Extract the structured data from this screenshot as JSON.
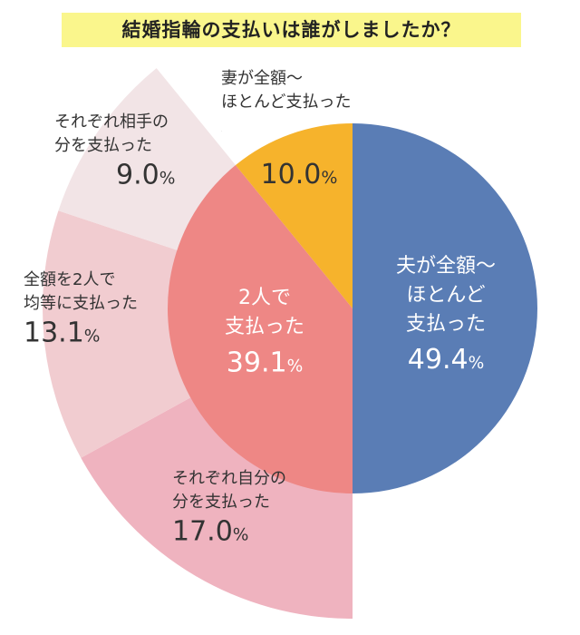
{
  "chart_data": {
    "type": "pie",
    "title": "結婚指輪の支払いは誰がしましたか？",
    "inner": [
      {
        "label_lines": [
          "夫が全額〜",
          "ほとんど",
          "支払った"
        ],
        "value": 49.4,
        "value_text": "49.4",
        "color": "#5a7db5",
        "text_color": "#ffffff"
      },
      {
        "label_lines": [
          "2人で",
          "支払った"
        ],
        "value": 39.1,
        "value_text": "39.1",
        "color": "#ee8785",
        "text_color": "#ffffff"
      },
      {
        "label_lines": [
          "妻が全額〜",
          "ほとんど支払った"
        ],
        "value": 10.0,
        "value_text": "10.0",
        "color": "#f6b32c",
        "text_color": "#333333"
      }
    ],
    "outer": [
      {
        "label_lines": [
          "それぞれ自分の",
          "分を支払った"
        ],
        "value": 17.0,
        "value_text": "17.0",
        "color": "#efb3bf"
      },
      {
        "label_lines": [
          "全額を2人で",
          "均等に支払った"
        ],
        "value": 13.1,
        "value_text": "13.1",
        "color": "#f1ccd0"
      },
      {
        "label_lines": [
          "それぞれ相手の",
          "分を支払った"
        ],
        "value": 9.0,
        "value_text": "9.0",
        "color": "#f2e4e6"
      }
    ],
    "unit": "%"
  }
}
